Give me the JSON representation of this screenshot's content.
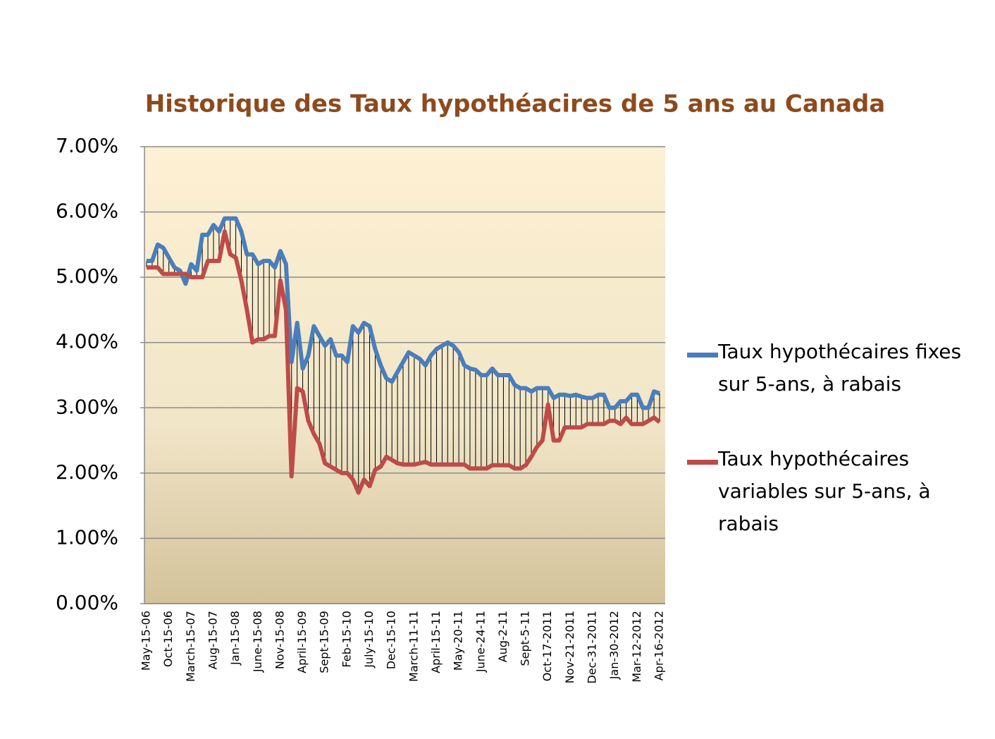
{
  "chart_data": {
    "type": "line",
    "title": "Historique des Taux hypothéacires de 5 ans au Canada",
    "categories": [
      "May-15-06",
      null,
      null,
      null,
      "Oct-15-06",
      null,
      null,
      null,
      "March-15-07",
      null,
      null,
      null,
      "Aug-15-07",
      null,
      null,
      null,
      "Jan-15-08",
      null,
      null,
      null,
      "June-15-08",
      null,
      null,
      null,
      "Nov-15-08",
      null,
      null,
      null,
      "April-15-09",
      null,
      null,
      null,
      "Sept-15-09",
      null,
      null,
      null,
      "Feb-15-10",
      null,
      null,
      null,
      "July-15-10",
      null,
      null,
      null,
      "Dec-15-10",
      null,
      null,
      null,
      "March-11-11",
      null,
      null,
      null,
      "April-15-11",
      null,
      null,
      null,
      "May-20-11",
      null,
      null,
      null,
      "June-24-11",
      null,
      null,
      null,
      "Aug-2-11",
      null,
      null,
      null,
      "Sept-5-11",
      null,
      null,
      null,
      "Oct-17-2011",
      null,
      null,
      null,
      "Nov-21-2011",
      null,
      null,
      null,
      "Dec-31-2011",
      null,
      null,
      null,
      "Jan-30-2012",
      null,
      null,
      null,
      "Mar-12-2012",
      null,
      null,
      null,
      "Apr-16-2012"
    ],
    "series": [
      {
        "name": "Taux hypothécaires fixes sur 5-ans, à rabais",
        "color": "#4a7ebb",
        "values": [
          5.25,
          5.25,
          5.5,
          5.45,
          5.3,
          5.15,
          5.1,
          4.9,
          5.2,
          5.1,
          5.65,
          5.65,
          5.8,
          5.7,
          5.9,
          5.9,
          5.9,
          5.7,
          5.35,
          5.35,
          5.2,
          5.25,
          5.25,
          5.15,
          5.4,
          5.2,
          3.7,
          4.3,
          3.6,
          3.8,
          4.25,
          4.1,
          3.95,
          4.05,
          3.8,
          3.8,
          3.7,
          4.25,
          4.15,
          4.3,
          4.25,
          3.9,
          3.65,
          3.45,
          3.4,
          3.55,
          3.7,
          3.85,
          3.8,
          3.75,
          3.65,
          3.8,
          3.9,
          3.95,
          4.0,
          3.95,
          3.85,
          3.65,
          3.6,
          3.58,
          3.5,
          3.5,
          3.6,
          3.5,
          3.5,
          3.5,
          3.35,
          3.3,
          3.3,
          3.25,
          3.3,
          3.3,
          3.3,
          3.15,
          3.2,
          3.2,
          3.18,
          3.2,
          3.17,
          3.15,
          3.15,
          3.2,
          3.2,
          3.0,
          3.0,
          3.1,
          3.1,
          3.2,
          3.2,
          3.0,
          3.0,
          3.25,
          3.22
        ]
      },
      {
        "name": "Taux hypothécaires variables sur 5-ans, à rabais",
        "color": "#be4b48",
        "values": [
          5.15,
          5.15,
          5.15,
          5.05,
          5.05,
          5.05,
          5.05,
          5.05,
          5.0,
          5.0,
          5.0,
          5.25,
          5.25,
          5.25,
          5.7,
          5.35,
          5.3,
          4.95,
          4.5,
          4.0,
          4.05,
          4.05,
          4.1,
          4.1,
          4.95,
          4.5,
          1.95,
          3.3,
          3.25,
          2.8,
          2.6,
          2.45,
          2.15,
          2.1,
          2.05,
          2.0,
          2.0,
          1.9,
          1.7,
          1.9,
          1.8,
          2.05,
          2.1,
          2.25,
          2.2,
          2.15,
          2.13,
          2.13,
          2.13,
          2.15,
          2.17,
          2.13,
          2.13,
          2.13,
          2.13,
          2.13,
          2.13,
          2.13,
          2.07,
          2.07,
          2.07,
          2.07,
          2.12,
          2.12,
          2.12,
          2.12,
          2.07,
          2.07,
          2.12,
          2.25,
          2.4,
          2.5,
          3.05,
          2.5,
          2.5,
          2.7,
          2.7,
          2.7,
          2.7,
          2.75,
          2.75,
          2.75,
          2.75,
          2.8,
          2.8,
          2.75,
          2.85,
          2.75,
          2.75,
          2.75,
          2.8,
          2.85,
          2.78
        ]
      }
    ],
    "ylim": [
      0,
      7
    ],
    "yticks": [
      {
        "value": 0,
        "label": "0.00%"
      },
      {
        "value": 1,
        "label": "1.00%"
      },
      {
        "value": 2,
        "label": "2.00%"
      },
      {
        "value": 3,
        "label": "3.00%"
      },
      {
        "value": 4,
        "label": "4.00%"
      },
      {
        "value": 5,
        "label": "5.00%"
      },
      {
        "value": 6,
        "label": "6.00%"
      },
      {
        "value": 7,
        "label": "7.00%"
      }
    ],
    "grid": true,
    "legend": "right"
  }
}
